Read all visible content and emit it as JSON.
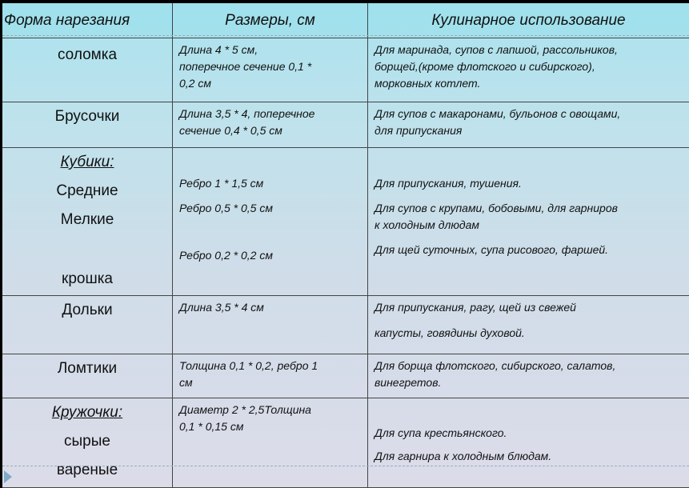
{
  "headers": [
    "Форма нарезания",
    "Размеры, см",
    "Кулинарное использование"
  ],
  "rows": [
    {
      "name": [
        "соломка"
      ],
      "size": [
        "Длина 4 * 5 см,",
        "поперечное сечение  0,1 *",
        "0,2 см"
      ],
      "use": [
        "Для маринада, супов с лапшой, рассольников,",
        "борщей,(кроме флотского и сибирского),",
        "морковных котлет."
      ]
    },
    {
      "name": [
        "Брусочки"
      ],
      "size": [
        "Длина 3,5 * 4, поперечное",
        "сечение     0,4 * 0,5 см"
      ],
      "use": [
        "Для супов с макаронами, бульонов с овощами,",
        "для припускания"
      ]
    },
    {
      "name": [
        "Кубики:",
        "Средние",
        "Мелкие",
        "крошка"
      ],
      "size": [
        "Ребро 1 * 1,5 см",
        "Ребро 0,5 * 0,5 см",
        "Ребро 0,2 * 0,2 см"
      ],
      "use": [
        "Для припускания, тушения.",
        "Для супов с крупами, бобовыми,  для гарниров",
        "к холодным длюдам",
        "Для щей суточных, супа рисового, фаршей."
      ]
    },
    {
      "name": [
        "Дольки"
      ],
      "size": [
        "Длина 3,5 * 4 см"
      ],
      "use": [
        "Для припускания, рагу, щей из свежей",
        "капусты, говядины духовой."
      ]
    },
    {
      "name": [
        "Ломтики"
      ],
      "size": [
        "Толщина 0,1 * 0,2, ребро 1",
        "см"
      ],
      "use": [
        "Для борща флотского, сибирского, салатов,",
        "винегретов."
      ]
    },
    {
      "name": [
        "Кружочки:",
        "сырые",
        "вареные"
      ],
      "size": [
        "Диаметр 2 * 2,5Толщина",
        "0,1 * 0,15 см"
      ],
      "use": [
        "Для супа крестьянского.",
        "Для гарнира к холодным блюдам."
      ]
    }
  ]
}
